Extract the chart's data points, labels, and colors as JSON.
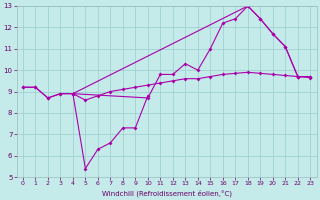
{
  "xlabel": "Windchill (Refroidissement éolien,°C)",
  "bg_color": "#c5eaea",
  "line_color": "#aa00aa",
  "grid_color": "#99cccc",
  "xlim": [
    -0.5,
    23.5
  ],
  "ylim": [
    5,
    13
  ],
  "xticks": [
    0,
    1,
    2,
    3,
    4,
    5,
    6,
    7,
    8,
    9,
    10,
    11,
    12,
    13,
    14,
    15,
    16,
    17,
    18,
    19,
    20,
    21,
    22,
    23
  ],
  "yticks": [
    5,
    6,
    7,
    8,
    9,
    10,
    11,
    12,
    13
  ],
  "lineA_x": [
    0,
    1,
    2,
    3,
    4,
    18,
    19,
    20,
    21,
    22,
    23
  ],
  "lineA_y": [
    9.2,
    9.2,
    8.7,
    8.9,
    8.9,
    13.0,
    12.4,
    11.7,
    11.1,
    9.7,
    9.7
  ],
  "lineB_x": [
    0,
    1,
    2,
    3,
    4,
    5,
    6,
    7,
    8,
    9,
    10
  ],
  "lineB_y": [
    9.2,
    9.2,
    8.7,
    8.9,
    8.9,
    5.4,
    6.3,
    6.6,
    7.3,
    7.3,
    8.8
  ],
  "lineC_x": [
    4,
    10,
    11,
    12,
    13,
    14,
    15,
    16,
    17,
    18,
    19,
    20,
    21,
    22,
    23
  ],
  "lineC_y": [
    8.9,
    8.7,
    9.8,
    9.8,
    10.3,
    10.0,
    11.0,
    12.2,
    12.4,
    13.0,
    12.4,
    11.7,
    11.1,
    9.7,
    9.7
  ],
  "lineD_x": [
    4,
    5,
    6,
    7,
    8,
    9,
    10,
    11,
    12,
    13,
    14,
    15,
    16,
    17,
    18,
    19,
    20,
    21,
    22,
    23
  ],
  "lineD_y": [
    8.9,
    8.6,
    8.8,
    9.0,
    9.1,
    9.2,
    9.3,
    9.4,
    9.5,
    9.6,
    9.6,
    9.7,
    9.8,
    9.85,
    9.9,
    9.85,
    9.8,
    9.75,
    9.7,
    9.65
  ],
  "xlabel_fontsize": 5,
  "tick_fontsize_x": 4.5,
  "tick_fontsize_y": 5
}
